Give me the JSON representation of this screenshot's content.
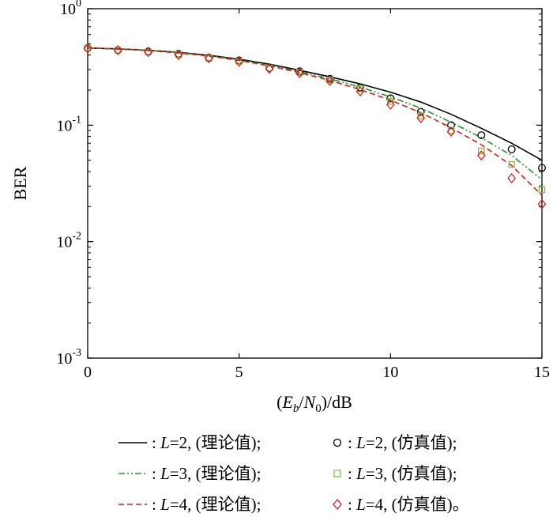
{
  "chart_data": {
    "type": "line",
    "title": "",
    "xlabel": "(E_b/N_0)/dB",
    "ylabel": "BER",
    "xlim": [
      0,
      15
    ],
    "ylim": [
      0.001,
      1
    ],
    "yscale": "log",
    "xticks": [
      "0",
      "5",
      "10",
      "15"
    ],
    "yticks": [
      {
        "base": "10",
        "exp": "0"
      },
      {
        "base": "10",
        "exp": "-1"
      },
      {
        "base": "10",
        "exp": "-2"
      },
      {
        "base": "10",
        "exp": "-3"
      }
    ],
    "grid": false,
    "legend_position": "bottom",
    "theory_x": [
      0,
      1,
      2,
      3,
      4,
      5,
      6,
      7,
      8,
      9,
      10,
      11,
      12,
      13,
      14,
      15
    ],
    "series": [
      {
        "kind": "line",
        "style": "solid",
        "color": "#000000",
        "label": "L=2",
        "note": "(理论值)",
        "values": [
          0.46,
          0.452,
          0.44,
          0.422,
          0.398,
          0.368,
          0.334,
          0.296,
          0.26,
          0.226,
          0.192,
          0.158,
          0.124,
          0.094,
          0.07,
          0.05
        ]
      },
      {
        "kind": "line",
        "style": "dashdot",
        "color": "#1a9a2a",
        "label": "L=3",
        "note": "(理论值)",
        "values": [
          0.46,
          0.452,
          0.439,
          0.42,
          0.395,
          0.364,
          0.328,
          0.288,
          0.25,
          0.212,
          0.175,
          0.14,
          0.106,
          0.078,
          0.055,
          0.034
        ]
      },
      {
        "kind": "line",
        "style": "dashed",
        "color": "#e41a1c",
        "label": "L=4",
        "note": "(理论值)",
        "values": [
          0.46,
          0.451,
          0.437,
          0.417,
          0.392,
          0.36,
          0.323,
          0.282,
          0.242,
          0.202,
          0.164,
          0.128,
          0.095,
          0.068,
          0.045,
          0.025
        ]
      },
      {
        "kind": "marker",
        "marker": "circle",
        "color": "#000000",
        "label": "L=2",
        "note": "(仿真值)",
        "x": [
          0,
          1,
          2,
          3,
          4,
          5,
          6,
          7,
          8,
          9,
          10,
          11,
          12,
          13,
          14,
          15
        ],
        "values": [
          0.46,
          0.44,
          0.43,
          0.41,
          0.38,
          0.36,
          0.31,
          0.29,
          0.25,
          0.21,
          0.17,
          0.13,
          0.1,
          0.082,
          0.062,
          0.043
        ]
      },
      {
        "kind": "marker",
        "marker": "square",
        "color": "#7ac143",
        "label": "L=3",
        "note": "(仿真值)",
        "x": [
          0,
          1,
          2,
          3,
          4,
          5,
          6,
          7,
          8,
          9,
          10,
          11,
          12,
          13,
          14,
          15
        ],
        "values": [
          0.46,
          0.44,
          0.425,
          0.405,
          0.375,
          0.355,
          0.31,
          0.285,
          0.245,
          0.205,
          0.16,
          0.12,
          0.09,
          0.06,
          0.046,
          0.028
        ]
      },
      {
        "kind": "marker",
        "marker": "diamond",
        "color": "#e41a1c",
        "label": "L=4",
        "note": "(仿真值)",
        "x": [
          0,
          1,
          2,
          3,
          4,
          5,
          6,
          7,
          8,
          9,
          10,
          11,
          12,
          13,
          14,
          15
        ],
        "values": [
          0.455,
          0.44,
          0.425,
          0.4,
          0.375,
          0.35,
          0.305,
          0.28,
          0.24,
          0.195,
          0.15,
          0.115,
          0.088,
          0.055,
          0.035,
          0.021
        ]
      }
    ]
  },
  "legend": {
    "rows": [
      {
        "left": {
          "prefix": ": ",
          "label": "L",
          "value": "=2, ",
          "note": "(理论值);"
        },
        "right": {
          "prefix": ": ",
          "label": "L",
          "value": "=2, ",
          "note": "(仿真值);"
        }
      },
      {
        "left": {
          "prefix": ": ",
          "label": "L",
          "value": "=3, ",
          "note": "(理论值);"
        },
        "right": {
          "prefix": ": ",
          "label": "L",
          "value": "=3, ",
          "note": "(仿真值);"
        }
      },
      {
        "left": {
          "prefix": ": ",
          "label": "L",
          "value": "=4, ",
          "note": "(理论值);"
        },
        "right": {
          "prefix": ": ",
          "label": "L",
          "value": "=4, ",
          "note": "(仿真值)。"
        }
      }
    ]
  },
  "axis_label_parts": {
    "x_open": "(",
    "x_E": "E",
    "x_b": "b",
    "x_slash": "/",
    "x_N": "N",
    "x_0": "0",
    "x_close": ")/dB"
  }
}
